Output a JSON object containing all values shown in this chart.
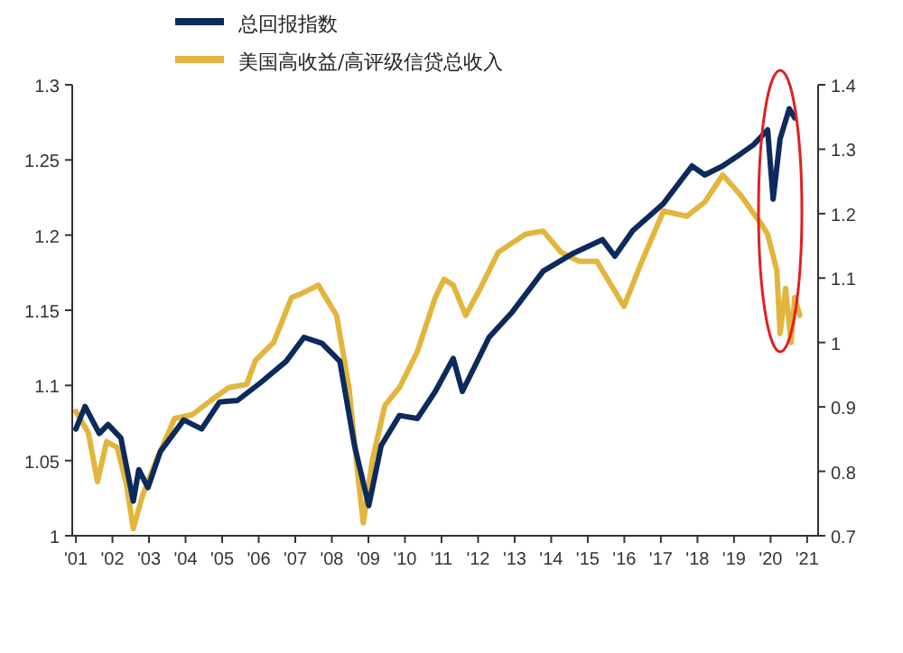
{
  "chart_data": {
    "type": "line",
    "legend": "top left",
    "grid": false,
    "line_style": "solid",
    "xlim": [
      2000.9,
      2021.3
    ],
    "xticks": [
      {
        "value": 2001,
        "label": "'01"
      },
      {
        "value": 2002,
        "label": "'02"
      },
      {
        "value": 2003,
        "label": "'03"
      },
      {
        "value": 2004,
        "label": "'04"
      },
      {
        "value": 2005,
        "label": "'05"
      },
      {
        "value": 2006,
        "label": "'06"
      },
      {
        "value": 2007,
        "label": "'07"
      },
      {
        "value": 2008,
        "label": "'08"
      },
      {
        "value": 2009,
        "label": "'09"
      },
      {
        "value": 2010,
        "label": "'10"
      },
      {
        "value": 2011,
        "label": "'11"
      },
      {
        "value": 2012,
        "label": "'12"
      },
      {
        "value": 2013,
        "label": "'13"
      },
      {
        "value": 2014,
        "label": "'14"
      },
      {
        "value": 2015,
        "label": "'15"
      },
      {
        "value": 2016,
        "label": "'16"
      },
      {
        "value": 2017,
        "label": "'17"
      },
      {
        "value": 2018,
        "label": "'18"
      },
      {
        "value": 2019,
        "label": "'19"
      },
      {
        "value": 2020,
        "label": "'20"
      },
      {
        "value": 2021,
        "label": "'21"
      }
    ],
    "ylim": [
      1,
      1.3
    ],
    "yticks": [
      {
        "value": 1,
        "label": "1"
      },
      {
        "value": 1.05,
        "label": "1.05"
      },
      {
        "value": 1.1,
        "label": "1.1"
      },
      {
        "value": 1.15,
        "label": "1.15"
      },
      {
        "value": 1.2,
        "label": "1.2"
      },
      {
        "value": 1.25,
        "label": "1.25"
      },
      {
        "value": 1.3,
        "label": "1.3"
      }
    ],
    "y2lim": [
      0.7,
      1.4
    ],
    "y2ticks": [
      {
        "value": 0.7,
        "label": "0.7"
      },
      {
        "value": 0.8,
        "label": "0.8"
      },
      {
        "value": 0.9,
        "label": "0.9"
      },
      {
        "value": 1,
        "label": "1"
      },
      {
        "value": 1.1,
        "label": "1.1"
      },
      {
        "value": 1.2,
        "label": "1.2"
      },
      {
        "value": 1.3,
        "label": "1.3"
      },
      {
        "value": 1.4,
        "label": "1.4"
      }
    ],
    "series": [
      {
        "name": "总回报指数",
        "color": "#0d2a5c",
        "x": [
          2001.0,
          2001.25,
          2001.64,
          2001.88,
          2002.23,
          2002.57,
          2002.72,
          2002.97,
          2003.31,
          2003.95,
          2004.44,
          2004.93,
          2005.42,
          2006.06,
          2006.75,
          2007.24,
          2007.73,
          2008.22,
          2008.62,
          2009.01,
          2009.35,
          2009.85,
          2010.34,
          2010.83,
          2011.32,
          2011.57,
          2012.3,
          2012.94,
          2013.78,
          2014.61,
          2015.4,
          2015.74,
          2016.23,
          2017.07,
          2017.85,
          2018.2,
          2018.69,
          2019.18,
          2019.53,
          2019.92,
          2020.07,
          2020.26,
          2020.51,
          2020.66
        ],
        "values": [
          1.071,
          1.086,
          1.068,
          1.074,
          1.065,
          1.023,
          1.044,
          1.032,
          1.056,
          1.077,
          1.071,
          1.089,
          1.09,
          1.102,
          1.116,
          1.132,
          1.128,
          1.116,
          1.06,
          1.02,
          1.06,
          1.08,
          1.078,
          1.096,
          1.118,
          1.096,
          1.132,
          1.149,
          1.176,
          1.188,
          1.197,
          1.186,
          1.203,
          1.221,
          1.246,
          1.24,
          1.246,
          1.254,
          1.26,
          1.27,
          1.224,
          1.264,
          1.284,
          1.278
        ]
      },
      {
        "name": "美国高收益/高评级信贷总收入",
        "color": "#e2b53e",
        "axis": "y2",
        "x": [
          2001.0,
          2001.34,
          2001.59,
          2001.84,
          2002.13,
          2002.38,
          2002.57,
          2002.82,
          2003.21,
          2003.7,
          2004.19,
          2004.69,
          2005.18,
          2005.67,
          2005.91,
          2006.41,
          2006.9,
          2007.14,
          2007.63,
          2008.13,
          2008.47,
          2008.72,
          2008.86,
          2009.11,
          2009.45,
          2009.85,
          2010.34,
          2010.83,
          2011.07,
          2011.32,
          2011.66,
          2012.06,
          2012.55,
          2013.29,
          2013.78,
          2014.27,
          2014.76,
          2015.25,
          2015.99,
          2016.48,
          2017.07,
          2017.71,
          2018.2,
          2018.69,
          2019.18,
          2019.53,
          2019.77,
          2019.92,
          2020.17,
          2020.26,
          2020.41,
          2020.56,
          2020.66,
          2020.8
        ],
        "values": [
          0.893,
          0.86,
          0.784,
          0.846,
          0.837,
          0.781,
          0.711,
          0.762,
          0.818,
          0.882,
          0.888,
          0.91,
          0.93,
          0.935,
          0.972,
          1.0,
          1.07,
          1.075,
          1.089,
          1.042,
          0.93,
          0.79,
          0.72,
          0.818,
          0.902,
          0.93,
          0.986,
          1.07,
          1.098,
          1.089,
          1.042,
          1.084,
          1.14,
          1.168,
          1.173,
          1.14,
          1.126,
          1.126,
          1.056,
          1.126,
          1.204,
          1.196,
          1.218,
          1.26,
          1.229,
          1.201,
          1.182,
          1.168,
          1.112,
          1.014,
          1.084,
          1.0,
          1.07,
          1.042
        ]
      }
    ]
  }
}
